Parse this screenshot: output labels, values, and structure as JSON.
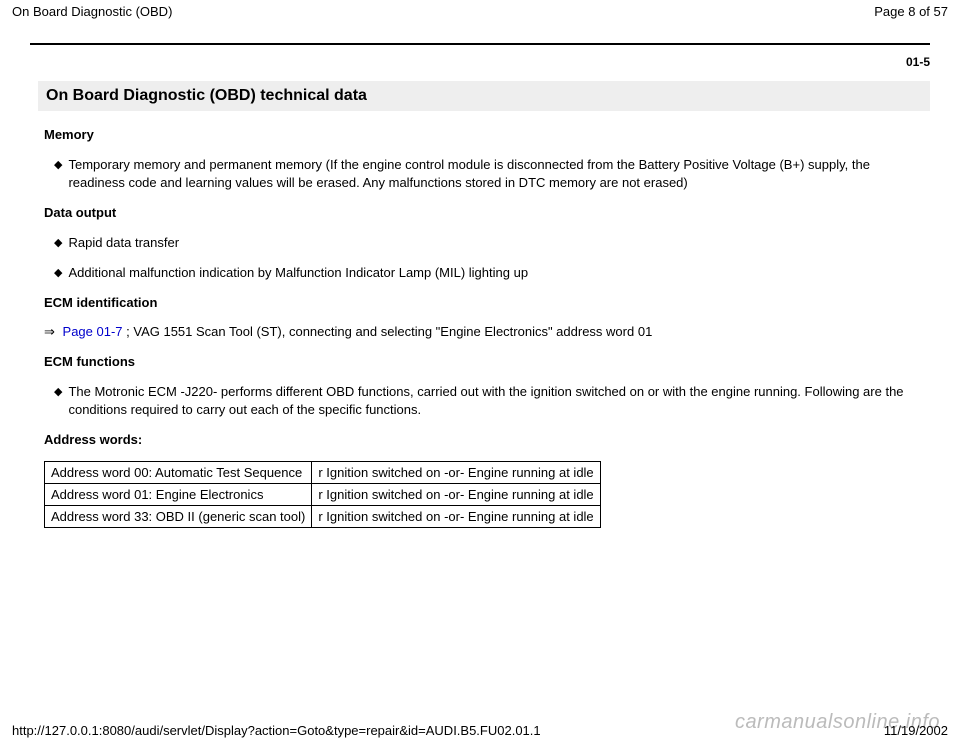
{
  "header": {
    "title": "On Board Diagnostic (OBD)",
    "page_info": "Page 8 of 57"
  },
  "section_number": "01-5",
  "main_heading": "On Board Diagnostic (OBD) technical data",
  "memory": {
    "title": "Memory",
    "items": [
      "Temporary memory and permanent memory (If the engine control module is disconnected from the Battery Positive Voltage (B+) supply, the readiness code and learning values will be erased. Any malfunctions stored in DTC memory are not erased)"
    ]
  },
  "data_output": {
    "title": "Data output",
    "items": [
      "Rapid data transfer",
      "Additional malfunction indication by Malfunction Indicator Lamp (MIL) lighting up"
    ]
  },
  "ecm_id": {
    "title": "ECM identification",
    "arrow": "⇒",
    "link_text": "Page 01-7",
    "suffix": " ; VAG 1551 Scan Tool (ST), connecting and selecting \"Engine Electronics\" address word 01"
  },
  "ecm_functions": {
    "title": "ECM functions",
    "items": [
      "The Motronic ECM -J220- performs different OBD functions, carried out with the ignition switched on or with the engine running. Following are the conditions required to carry out each of the specific functions."
    ]
  },
  "address_words": {
    "title": "Address words:",
    "rows": [
      [
        "Address word 00: Automatic Test Sequence",
        "r Ignition switched on -or- Engine running at idle"
      ],
      [
        "Address word 01: Engine Electronics",
        "r Ignition switched on -or- Engine running at idle"
      ],
      [
        "Address word 33: OBD II (generic scan tool)",
        "r Ignition switched on -or- Engine running at idle"
      ]
    ]
  },
  "footer": {
    "url": "http://127.0.0.1:8080/audi/servlet/Display?action=Goto&type=repair&id=AUDI.B5.FU02.01.1",
    "date": "11/19/2002"
  },
  "watermark": "carmanualsonline.info",
  "glyphs": {
    "diamond": "◆"
  }
}
